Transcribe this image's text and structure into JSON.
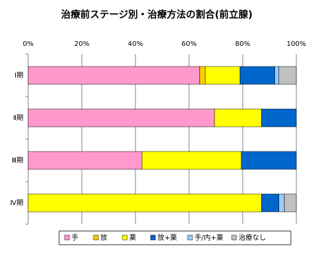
{
  "chart_data": {
    "type": "stacked-bar-horizontal",
    "title": "治療前ステージ別・治療方法の割合(前立腺)",
    "categories": [
      "Ⅰ期",
      "Ⅱ期",
      "Ⅲ期",
      "Ⅳ期"
    ],
    "series": [
      {
        "name": "手",
        "color": "#ff99cc",
        "values": [
          64,
          69.5,
          42.5,
          0
        ]
      },
      {
        "name": "放",
        "color": "#ffcc00",
        "values": [
          2,
          0,
          0,
          0
        ]
      },
      {
        "name": "薬",
        "color": "#ffff00",
        "values": [
          13,
          17.5,
          37,
          87
        ]
      },
      {
        "name": "放+薬",
        "color": "#0066cc",
        "values": [
          13,
          13,
          20.5,
          6.5
        ]
      },
      {
        "name": "手/内+薬",
        "color": "#99ccff",
        "values": [
          1.5,
          0,
          0,
          2
        ]
      },
      {
        "name": "治療なし",
        "color": "#c0c0c0",
        "values": [
          6.5,
          0,
          0,
          4.5
        ]
      }
    ],
    "xlim": [
      0,
      100
    ],
    "xticks": [
      {
        "value": 0,
        "label": "0%"
      },
      {
        "value": 20,
        "label": "20%"
      },
      {
        "value": 40,
        "label": "40%"
      },
      {
        "value": 60,
        "label": "60%"
      },
      {
        "value": 80,
        "label": "80%"
      },
      {
        "value": 100,
        "label": "100%"
      }
    ],
    "grid": true
  }
}
